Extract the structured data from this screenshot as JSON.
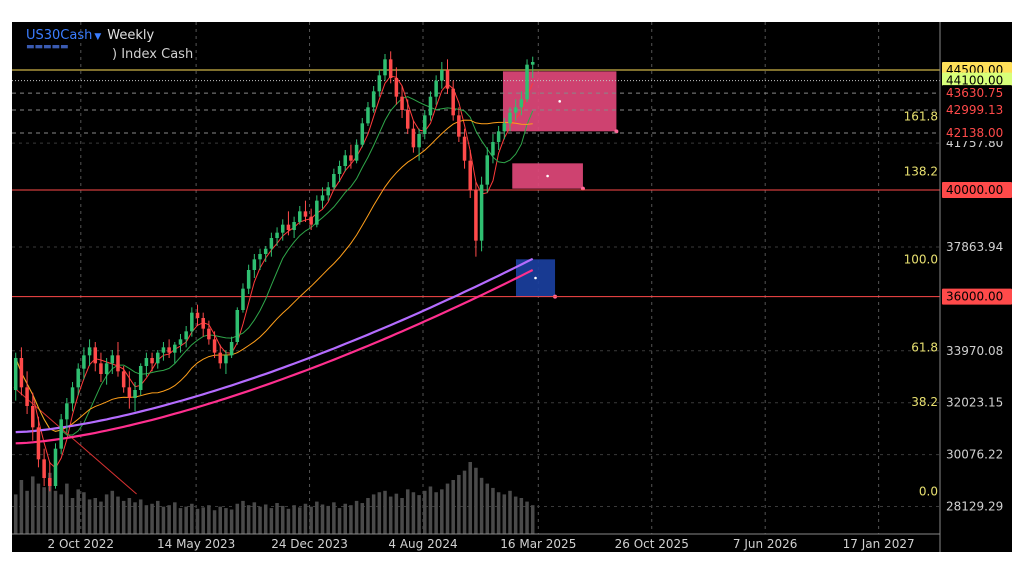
{
  "header": {
    "symbol": "US30Cash",
    "timeframe": "Weekly",
    "instrument_name": ") Index Cash"
  },
  "colors": {
    "background": "#000000",
    "bull": "#2fbf71",
    "bear": "#ff4a4a",
    "ma_purple": "#b46cff",
    "ma_pink": "#ff2f8e",
    "ma_orange": "#ff9f1a",
    "ma_green": "#2fa64a",
    "ma_red": "#ff3b3b",
    "fib_text": "#e8e070",
    "zone_pink": "#e0487a",
    "zone_blue": "#1a3f9e"
  },
  "chart_data": {
    "type": "candlestick",
    "ylim": [
      27100,
      46300
    ],
    "x_tick_labels": [
      "2 Oct 2022",
      "14 May 2023",
      "24 Dec 2023",
      "4 Aug 2024",
      "16 Mar 2025",
      "26 Oct 2025",
      "7 Jun 2026",
      "17 Jan 2027"
    ],
    "y_tick_labels": [
      {
        "value": 41757.8,
        "text": "41757.80"
      },
      {
        "value": 37863.94,
        "text": "37863.94"
      },
      {
        "value": 33970.08,
        "text": "33970.08"
      },
      {
        "value": 32023.15,
        "text": "32023.15"
      },
      {
        "value": 30076.22,
        "text": "30076.22"
      },
      {
        "value": 28129.29,
        "text": "28129.29"
      }
    ],
    "price_badges": [
      {
        "value": 44500,
        "text": "44500.00",
        "bg": "#ffe05a",
        "fg": "#000000"
      },
      {
        "value": 44100,
        "text": "44100.00",
        "bg": "#d8ff7a",
        "fg": "#000000"
      },
      {
        "value": 43630.75,
        "text": "43630.75",
        "bg": "#000000",
        "fg": "#ff4a4a"
      },
      {
        "value": 42999.13,
        "text": "42999.13",
        "bg": "#000000",
        "fg": "#ff4a4a"
      },
      {
        "value": 42138,
        "text": "42138.00",
        "bg": "#000000",
        "fg": "#ff4a4a"
      },
      {
        "value": 40000,
        "text": "40000.00",
        "bg": "#ff4a4a",
        "fg": "#000000"
      },
      {
        "value": 36000,
        "text": "36000.00",
        "bg": "#ff4a4a",
        "fg": "#000000"
      }
    ],
    "fib_levels": [
      {
        "level": "0.0",
        "value": 28700
      },
      {
        "level": "38.2",
        "value": 32050
      },
      {
        "level": "61.8",
        "value": 34100
      },
      {
        "level": "100.0",
        "value": 37400
      },
      {
        "level": "138.2",
        "value": 40700
      },
      {
        "level": "161.8",
        "value": 42750
      }
    ],
    "horizontal_lines": [
      {
        "value": 44500,
        "color": "#ffe05a",
        "style": "solid"
      },
      {
        "value": 44100,
        "color": "#c8c8c8",
        "style": "dotted"
      },
      {
        "value": 43630.75,
        "color": "#888888",
        "style": "dashed"
      },
      {
        "value": 42999.13,
        "color": "#888888",
        "style": "dashed"
      },
      {
        "value": 42138,
        "color": "#888888",
        "style": "dashed"
      },
      {
        "value": 40000,
        "color": "#ff4a4a",
        "style": "solid"
      },
      {
        "value": 36000,
        "color": "#ff4a4a",
        "style": "solid"
      }
    ],
    "zones": [
      {
        "x_start": 2025.02,
        "x_end": 2025.63,
        "y_low": 42200,
        "y_high": 44450,
        "color": "pink"
      },
      {
        "x_start": 2025.07,
        "x_end": 2025.45,
        "y_low": 40050,
        "y_high": 41000,
        "color": "pink"
      },
      {
        "x_start": 2025.09,
        "x_end": 2025.3,
        "y_low": 36000,
        "y_high": 37400,
        "color": "blue"
      }
    ],
    "x_range": [
      2022.38,
      2027.37
    ],
    "candle_ohlc": [
      [
        32500,
        33900,
        32100,
        33700
      ],
      [
        33700,
        34100,
        32300,
        32600
      ],
      [
        32600,
        33200,
        31600,
        31900
      ],
      [
        31900,
        32400,
        30600,
        31100
      ],
      [
        31100,
        31500,
        29600,
        29900
      ],
      [
        29900,
        30300,
        28900,
        29200
      ],
      [
        29200,
        29800,
        28700,
        28900
      ],
      [
        28900,
        30500,
        28800,
        30300
      ],
      [
        30300,
        31600,
        30100,
        31400
      ],
      [
        31400,
        32200,
        30900,
        32000
      ],
      [
        32000,
        32800,
        31700,
        32600
      ],
      [
        32600,
        33500,
        32300,
        33300
      ],
      [
        33300,
        34100,
        32900,
        33800
      ],
      [
        33800,
        34400,
        33400,
        34100
      ],
      [
        34100,
        34300,
        33200,
        33500
      ],
      [
        33500,
        33900,
        32800,
        33100
      ],
      [
        33100,
        33700,
        32700,
        33500
      ],
      [
        33500,
        34000,
        33100,
        33800
      ],
      [
        33800,
        34300,
        33000,
        33200
      ],
      [
        33200,
        33400,
        32400,
        32600
      ],
      [
        32600,
        33200,
        31800,
        32200
      ],
      [
        32200,
        32800,
        31700,
        32500
      ],
      [
        32500,
        33500,
        32300,
        33400
      ],
      [
        33400,
        33900,
        33000,
        33700
      ],
      [
        33700,
        33900,
        33200,
        33500
      ],
      [
        33500,
        34000,
        33300,
        33900
      ],
      [
        33900,
        34300,
        33600,
        34100
      ],
      [
        34100,
        34400,
        33700,
        33900
      ],
      [
        33900,
        34300,
        33500,
        34200
      ],
      [
        34200,
        34600,
        33900,
        34400
      ],
      [
        34400,
        34900,
        34100,
        34700
      ],
      [
        34700,
        35600,
        34500,
        35400
      ],
      [
        35400,
        35700,
        34900,
        35200
      ],
      [
        35200,
        35400,
        34500,
        34800
      ],
      [
        34800,
        35100,
        34200,
        34400
      ],
      [
        34400,
        34700,
        33700,
        33900
      ],
      [
        33900,
        34200,
        33300,
        33500
      ],
      [
        33500,
        34000,
        33100,
        33800
      ],
      [
        33800,
        34500,
        33700,
        34300
      ],
      [
        34300,
        35600,
        34200,
        35500
      ],
      [
        35500,
        36500,
        35400,
        36300
      ],
      [
        36300,
        37200,
        36100,
        37000
      ],
      [
        37000,
        37600,
        36700,
        37400
      ],
      [
        37400,
        37800,
        37000,
        37600
      ],
      [
        37600,
        37900,
        37300,
        37800
      ],
      [
        37800,
        38400,
        37500,
        38200
      ],
      [
        38200,
        38600,
        37900,
        38400
      ],
      [
        38400,
        38900,
        38100,
        38700
      ],
      [
        38700,
        39200,
        38300,
        38500
      ],
      [
        38500,
        39000,
        38200,
        38800
      ],
      [
        38800,
        39400,
        38700,
        39200
      ],
      [
        39200,
        39600,
        38800,
        39000
      ],
      [
        39000,
        39300,
        38500,
        38700
      ],
      [
        38700,
        39800,
        38600,
        39600
      ],
      [
        39600,
        40100,
        39300,
        39800
      ],
      [
        39800,
        40300,
        39600,
        40100
      ],
      [
        40100,
        40800,
        40000,
        40600
      ],
      [
        40600,
        41100,
        40300,
        40900
      ],
      [
        40900,
        41500,
        40700,
        41300
      ],
      [
        41300,
        41700,
        40800,
        41100
      ],
      [
        41100,
        41900,
        41000,
        41700
      ],
      [
        41700,
        42700,
        41600,
        42500
      ],
      [
        42500,
        43300,
        42400,
        43100
      ],
      [
        43100,
        43900,
        42900,
        43700
      ],
      [
        43700,
        44500,
        43500,
        44300
      ],
      [
        44300,
        45100,
        44100,
        44900
      ],
      [
        44900,
        45200,
        44000,
        44200
      ],
      [
        44200,
        44600,
        43200,
        43500
      ],
      [
        43500,
        43900,
        42700,
        43000
      ],
      [
        43000,
        43400,
        42100,
        42300
      ],
      [
        42300,
        42600,
        41400,
        41600
      ],
      [
        41600,
        42300,
        41100,
        42100
      ],
      [
        42100,
        43000,
        41900,
        42800
      ],
      [
        42800,
        43700,
        42600,
        43500
      ],
      [
        43500,
        44300,
        43200,
        44100
      ],
      [
        44100,
        44800,
        43800,
        44500
      ],
      [
        44500,
        44900,
        43600,
        43800
      ],
      [
        43800,
        44100,
        42600,
        42800
      ],
      [
        42800,
        43100,
        41800,
        42000
      ],
      [
        42000,
        42300,
        40800,
        41100
      ],
      [
        41100,
        41500,
        39700,
        40000
      ],
      [
        40000,
        40300,
        37500,
        38100
      ],
      [
        38100,
        40500,
        37700,
        40200
      ],
      [
        40200,
        41600,
        39900,
        41300
      ],
      [
        41300,
        42100,
        41000,
        41800
      ],
      [
        41800,
        42400,
        41500,
        42200
      ],
      [
        42200,
        42700,
        41900,
        42500
      ],
      [
        42500,
        43100,
        42200,
        42900
      ],
      [
        42900,
        43400,
        42600,
        43100
      ],
      [
        43100,
        43700,
        42800,
        43400
      ],
      [
        43400,
        44900,
        43300,
        44700
      ],
      [
        44700,
        45000,
        44200,
        44800
      ]
    ],
    "volume": [
      0.55,
      0.75,
      0.6,
      0.8,
      0.7,
      0.65,
      0.85,
      0.6,
      0.55,
      0.7,
      0.5,
      0.62,
      0.58,
      0.48,
      0.5,
      0.45,
      0.55,
      0.6,
      0.52,
      0.46,
      0.5,
      0.44,
      0.48,
      0.4,
      0.42,
      0.46,
      0.38,
      0.4,
      0.44,
      0.36,
      0.38,
      0.42,
      0.35,
      0.37,
      0.4,
      0.33,
      0.38,
      0.36,
      0.34,
      0.42,
      0.46,
      0.4,
      0.44,
      0.38,
      0.41,
      0.36,
      0.43,
      0.39,
      0.35,
      0.4,
      0.37,
      0.42,
      0.38,
      0.45,
      0.41,
      0.39,
      0.44,
      0.36,
      0.42,
      0.4,
      0.46,
      0.43,
      0.5,
      0.55,
      0.58,
      0.6,
      0.52,
      0.56,
      0.5,
      0.62,
      0.58,
      0.54,
      0.6,
      0.66,
      0.58,
      0.62,
      0.7,
      0.75,
      0.82,
      0.88,
      1.0,
      0.92,
      0.78,
      0.7,
      0.64,
      0.58,
      0.55,
      0.6,
      0.52,
      0.5,
      0.45,
      0.4
    ]
  }
}
